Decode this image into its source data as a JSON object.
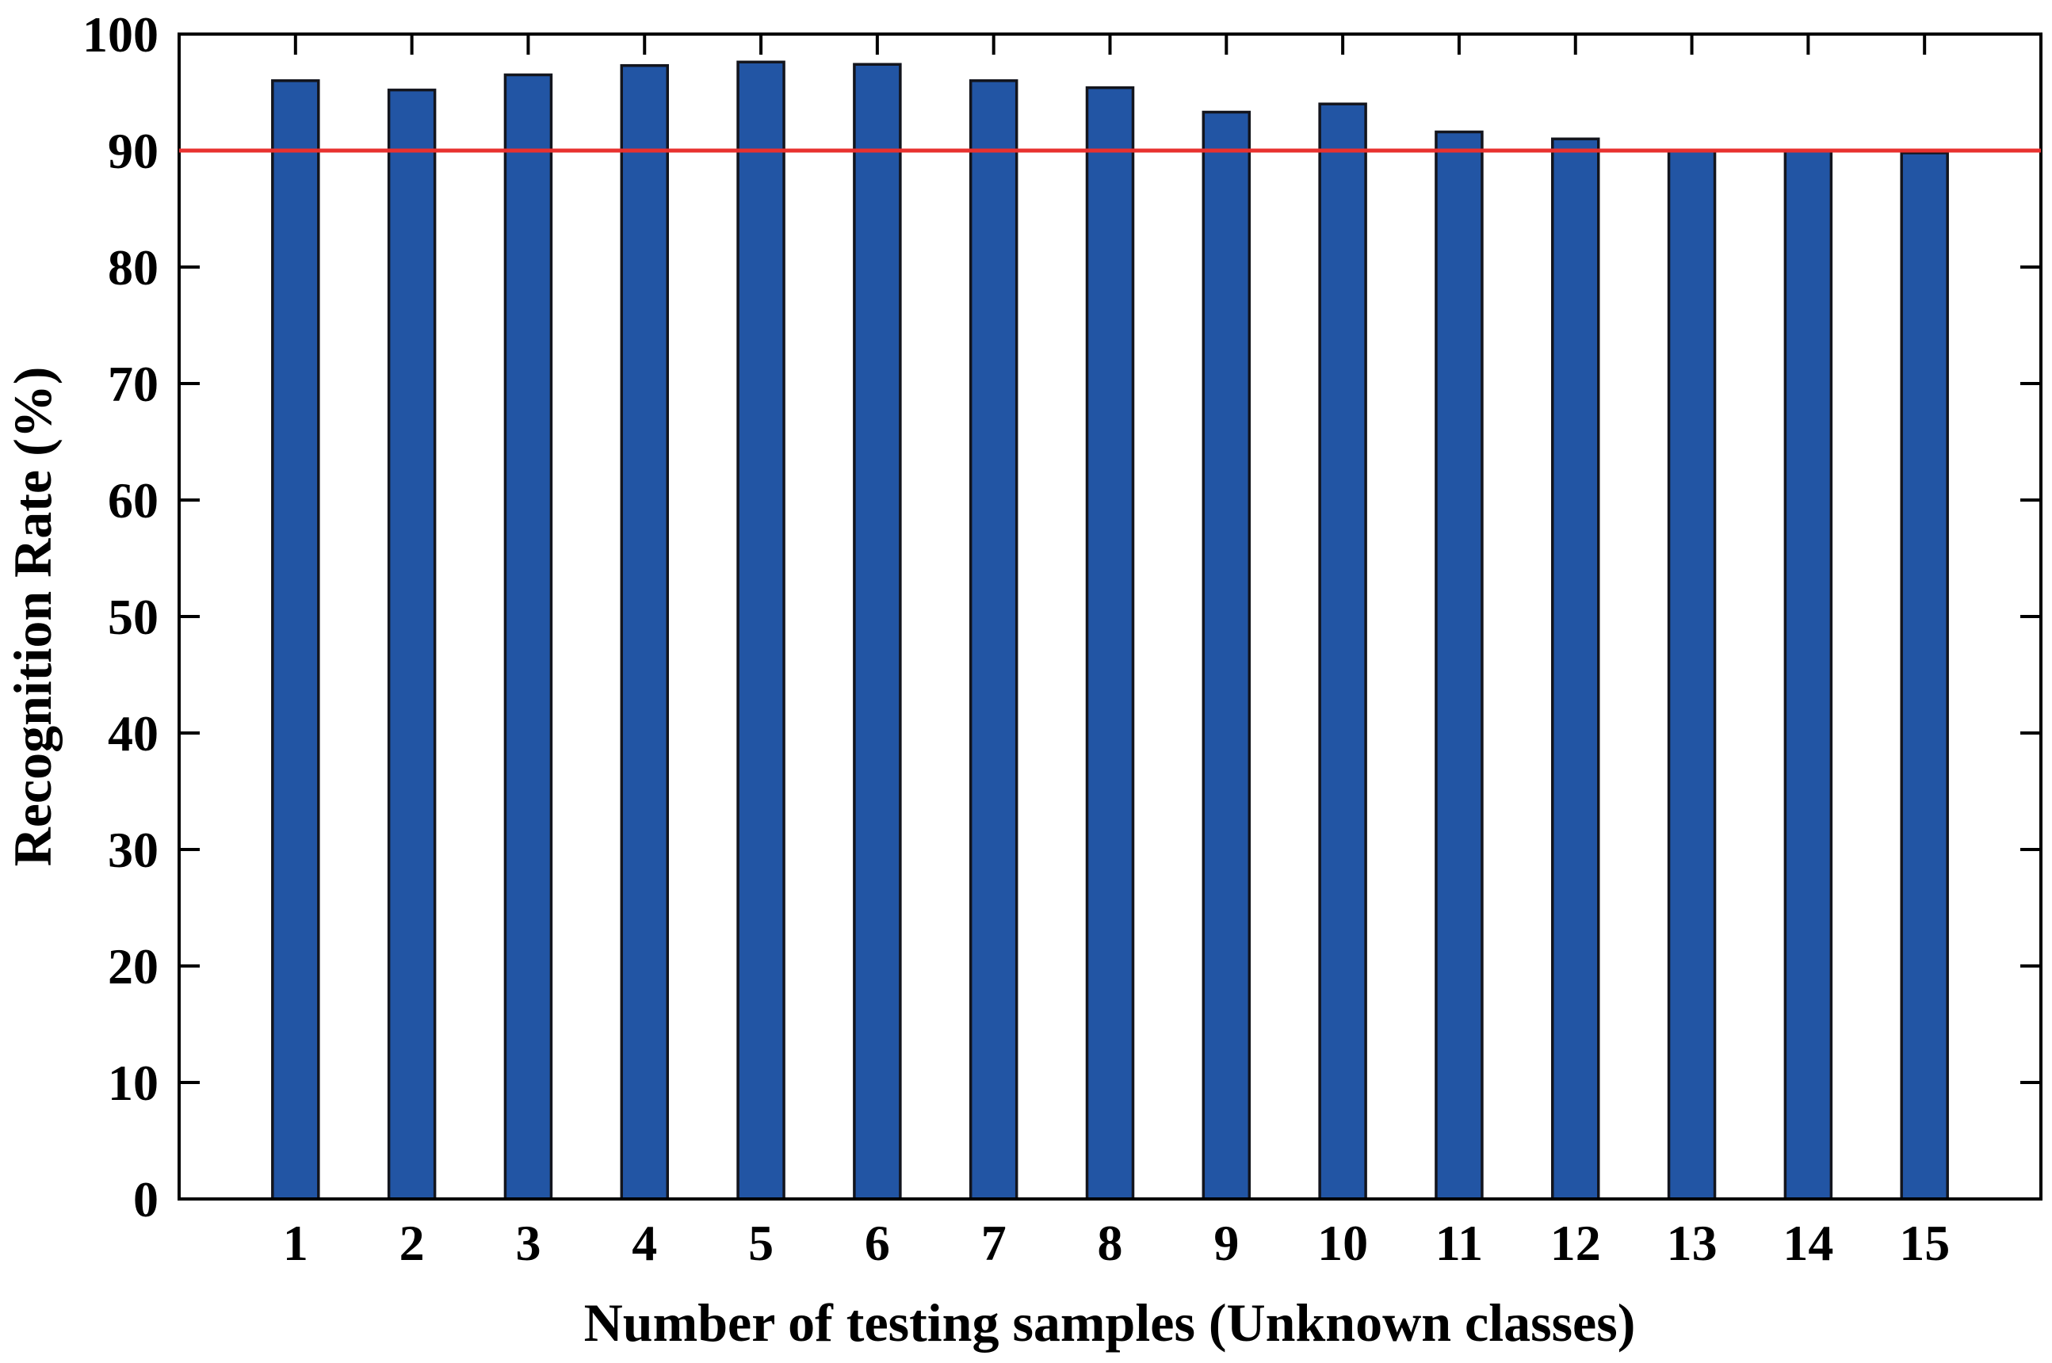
{
  "chart_data": {
    "type": "bar",
    "title": "",
    "xlabel": "Number of testing samples (Unknown classes)",
    "ylabel": "Recognition Rate (%)",
    "categories": [
      "1",
      "2",
      "3",
      "4",
      "5",
      "6",
      "7",
      "8",
      "9",
      "10",
      "11",
      "12",
      "13",
      "14",
      "15"
    ],
    "series": [
      {
        "name": "Recognition Rate",
        "values": [
          96.0,
          95.2,
          96.5,
          97.3,
          97.6,
          97.4,
          96.0,
          95.4,
          93.3,
          94.0,
          91.6,
          91.0,
          90.0,
          90.0,
          89.8
        ]
      }
    ],
    "ylim": [
      0,
      100
    ],
    "yticks": [
      0,
      10,
      20,
      30,
      40,
      50,
      60,
      70,
      80,
      90,
      100
    ],
    "ytick_labels": [
      "0",
      "10",
      "20",
      "30",
      "40",
      "50",
      "60",
      "70",
      "80",
      "90",
      "100"
    ],
    "threshold_line": {
      "value": 90,
      "color": "#e8312f"
    },
    "grid": "off",
    "legend": "none",
    "bar_fill_color": "#2255a4",
    "bar_edge_color": "#13151d",
    "axis_color": "#000000",
    "background_color": "#ffffff"
  }
}
